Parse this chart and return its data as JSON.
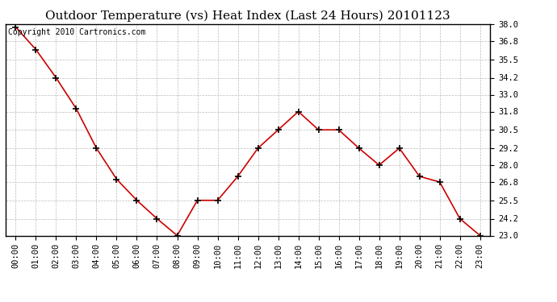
{
  "title": "Outdoor Temperature (vs) Heat Index (Last 24 Hours) 20101123",
  "copyright_text": "Copyright 2010 Cartronics.com",
  "x_labels": [
    "00:00",
    "01:00",
    "02:00",
    "03:00",
    "04:00",
    "05:00",
    "06:00",
    "07:00",
    "08:00",
    "09:00",
    "10:00",
    "11:00",
    "12:00",
    "13:00",
    "14:00",
    "15:00",
    "16:00",
    "17:00",
    "18:00",
    "19:00",
    "20:00",
    "21:00",
    "22:00",
    "23:00"
  ],
  "y_values": [
    37.8,
    36.2,
    34.2,
    32.0,
    29.2,
    27.0,
    25.5,
    24.2,
    23.0,
    25.5,
    25.5,
    27.2,
    29.2,
    30.5,
    31.8,
    30.5,
    30.5,
    29.2,
    28.0,
    29.2,
    27.2,
    26.8,
    24.2,
    23.0
  ],
  "line_color": "#cc0000",
  "marker_color": "#000000",
  "bg_color": "#ffffff",
  "plot_bg_color": "#ffffff",
  "grid_color": "#bbbbbb",
  "y_min": 23.0,
  "y_max": 38.0,
  "y_ticks": [
    23.0,
    24.2,
    25.5,
    26.8,
    28.0,
    29.2,
    30.5,
    31.8,
    33.0,
    34.2,
    35.5,
    36.8,
    38.0
  ],
  "title_fontsize": 11,
  "axis_fontsize": 7.5,
  "copyright_fontsize": 7
}
